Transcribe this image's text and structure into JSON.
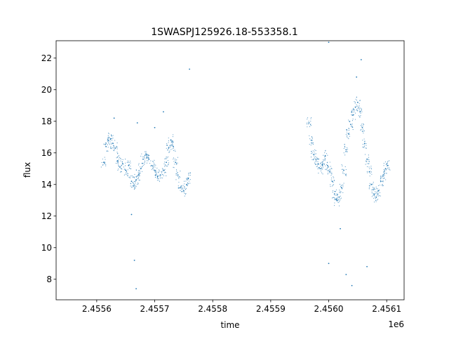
{
  "chart_data": {
    "type": "scatter",
    "title": "1SWASPJ125926.18-553358.1",
    "xlabel": "time",
    "ylabel": "flux",
    "x_offset_label": "1e6",
    "x_offset": 1000000,
    "xlim": [
      2.45553,
      2.45613
    ],
    "ylim": [
      6.7,
      23.1
    ],
    "x_ticks": [
      2.4556,
      2.4557,
      2.4558,
      2.4559,
      2.456,
      2.4561
    ],
    "x_tick_labels": [
      "2.4556",
      "2.4557",
      "2.4558",
      "2.4559",
      "2.4560",
      "2.4561"
    ],
    "y_ticks": [
      8,
      10,
      12,
      14,
      16,
      18,
      20,
      22
    ],
    "y_tick_labels": [
      "8",
      "10",
      "12",
      "14",
      "16",
      "18",
      "20",
      "22"
    ],
    "grid": false,
    "marker_color": "#1f77b4",
    "series": [
      {
        "points": [
          [
            2.455612,
            15.4
          ],
          [
            2.455616,
            16.4
          ],
          [
            2.45562,
            16.8
          ],
          [
            2.455624,
            16.9
          ],
          [
            2.455628,
            16.6
          ],
          [
            2.455632,
            16.3
          ],
          [
            2.455636,
            15.5
          ],
          [
            2.45564,
            15.1
          ],
          [
            2.455645,
            15.3
          ],
          [
            2.45565,
            14.9
          ],
          [
            2.455655,
            15.2
          ],
          [
            2.45566,
            14.2
          ],
          [
            2.455664,
            13.9
          ],
          [
            2.455668,
            14.3
          ],
          [
            2.455672,
            14.6
          ],
          [
            2.455676,
            15.0
          ],
          [
            2.45568,
            15.6
          ],
          [
            2.455685,
            15.9
          ],
          [
            2.45569,
            15.6
          ],
          [
            2.455695,
            15.2
          ],
          [
            2.4557,
            14.9
          ],
          [
            2.455705,
            14.5
          ],
          [
            2.45571,
            14.6
          ],
          [
            2.455716,
            14.9
          ],
          [
            2.45572,
            15.4
          ],
          [
            2.455724,
            16.3
          ],
          [
            2.455728,
            16.8
          ],
          [
            2.455732,
            16.4
          ],
          [
            2.455736,
            15.4
          ],
          [
            2.45574,
            14.6
          ],
          [
            2.455745,
            13.8
          ],
          [
            2.45575,
            13.6
          ],
          [
            2.455755,
            14.0
          ],
          [
            2.455758,
            14.4
          ],
          [
            2.455966,
            17.9
          ],
          [
            2.45597,
            16.8
          ],
          [
            2.455974,
            15.9
          ],
          [
            2.455978,
            15.6
          ],
          [
            2.455982,
            15.3
          ],
          [
            2.455986,
            15.0
          ],
          [
            2.45599,
            15.3
          ],
          [
            2.455994,
            15.8
          ],
          [
            2.455998,
            15.2
          ],
          [
            2.456002,
            14.8
          ],
          [
            2.456006,
            14.2
          ],
          [
            2.45601,
            13.4
          ],
          [
            2.456014,
            13.0
          ],
          [
            2.456018,
            13.2
          ],
          [
            2.456022,
            13.8
          ],
          [
            2.456026,
            14.9
          ],
          [
            2.45603,
            16.2
          ],
          [
            2.456034,
            17.2
          ],
          [
            2.456038,
            17.8
          ],
          [
            2.456042,
            18.4
          ],
          [
            2.456046,
            18.9
          ],
          [
            2.45605,
            19.2
          ],
          [
            2.456054,
            18.6
          ],
          [
            2.456058,
            17.6
          ],
          [
            2.456062,
            16.6
          ],
          [
            2.456066,
            15.6
          ],
          [
            2.45607,
            14.8
          ],
          [
            2.456074,
            14.0
          ],
          [
            2.456078,
            13.4
          ],
          [
            2.456082,
            13.2
          ],
          [
            2.456086,
            13.6
          ],
          [
            2.45609,
            14.2
          ],
          [
            2.456094,
            14.6
          ],
          [
            2.456098,
            15.0
          ],
          [
            2.456102,
            15.2
          ],
          [
            2.45563,
            18.2
          ],
          [
            2.45567,
            17.9
          ],
          [
            2.4557,
            17.6
          ],
          [
            2.455715,
            18.6
          ],
          [
            2.45566,
            12.1
          ],
          [
            2.455665,
            9.2
          ],
          [
            2.455668,
            7.4
          ],
          [
            2.45576,
            21.3
          ],
          [
            2.456,
            9.0
          ],
          [
            2.45603,
            8.3
          ],
          [
            2.45604,
            7.6
          ],
          [
            2.456056,
            21.9
          ],
          [
            2.456048,
            20.8
          ],
          [
            2.456066,
            8.8
          ],
          [
            2.45602,
            11.2
          ],
          [
            2.456,
            23.0
          ]
        ]
      }
    ]
  }
}
